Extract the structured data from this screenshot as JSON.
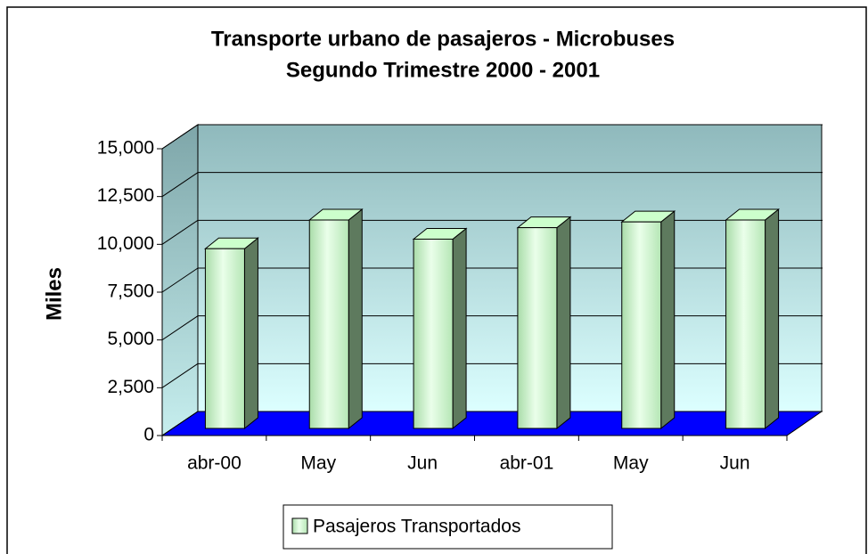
{
  "chart_data": {
    "type": "bar3d",
    "title": "Transporte urbano de pasajeros - Microbuses",
    "subtitle": "Segundo Trimestre 2000 - 2001",
    "y_label": "Miles",
    "categories": [
      "abr-00",
      "May",
      "Jun",
      "abr-01",
      "May",
      "Jun"
    ],
    "series": [
      {
        "name": "Pasajeros Transportados",
        "color": "#ccffcc",
        "values": [
          9400,
          10900,
          9900,
          10500,
          10800,
          10900
        ]
      }
    ],
    "ylim": [
      0,
      15000
    ],
    "yticks": [
      0,
      {
        "value": 2500,
        "label": "2,500"
      },
      {
        "value": 5000,
        "label": "5,000"
      },
      {
        "value": 7500,
        "label": "7,500"
      },
      {
        "value": 10000,
        "label": "10,000"
      },
      {
        "value": 12500,
        "label": "12,500"
      },
      {
        "value": 15000,
        "label": "15,000"
      }
    ],
    "grid": true,
    "legend": "bottom"
  }
}
